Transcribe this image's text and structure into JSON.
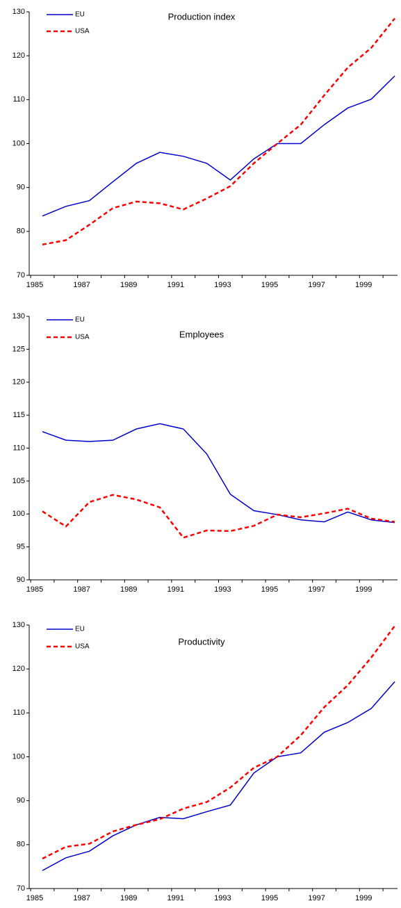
{
  "chart_data": [
    {
      "type": "line",
      "title": "Production index",
      "categories": [
        "1985",
        null,
        "1987",
        null,
        "1989",
        null,
        "1991",
        null,
        "1993",
        null,
        "1995",
        null,
        "1997",
        null,
        "1999",
        null
      ],
      "series": [
        {
          "name": "EU",
          "color": "#0000cc",
          "line_style": "solid",
          "values": [
            83.5,
            85.7,
            87,
            91.3,
            95.5,
            98,
            97.1,
            95.5,
            91.7,
            96.5,
            100,
            100,
            104.3,
            108.1,
            110.1,
            115.4
          ]
        },
        {
          "name": "USA",
          "color": "#ff0000",
          "line_style": "dashed",
          "values": [
            77,
            78,
            81.5,
            85.3,
            86.8,
            86.4,
            85,
            87.5,
            90.3,
            95.5,
            100,
            104.3,
            111,
            117.3,
            121.8,
            128.5
          ]
        }
      ],
      "ylim": [
        70,
        130
      ],
      "yticks": [
        70,
        80,
        90,
        100,
        110,
        120,
        130
      ]
    },
    {
      "type": "line",
      "title": "Employees",
      "categories": [
        "1985",
        null,
        "1987",
        null,
        "1989",
        null,
        "1991",
        null,
        "1993",
        null,
        "1995",
        null,
        "1997",
        null,
        "1999",
        null
      ],
      "series": [
        {
          "name": "EU",
          "color": "#0000cc",
          "line_style": "solid",
          "values": [
            112.5,
            111.2,
            111,
            111.2,
            112.9,
            113.7,
            112.9,
            109.1,
            103,
            100.5,
            99.9,
            99.1,
            98.8,
            100.3,
            99.1,
            98.7
          ]
        },
        {
          "name": "USA",
          "color": "#ff0000",
          "line_style": "dashed",
          "values": [
            100.4,
            98.1,
            101.8,
            102.9,
            102.2,
            101,
            96.4,
            97.5,
            97.4,
            98.2,
            99.9,
            99.5,
            100.1,
            100.8,
            99.3,
            98.8
          ]
        }
      ],
      "ylim": [
        90,
        130
      ],
      "yticks": [
        90,
        95,
        100,
        105,
        110,
        115,
        120,
        125,
        130
      ]
    },
    {
      "type": "line",
      "title": "Productivity",
      "categories": [
        "1985",
        null,
        "1987",
        null,
        "1989",
        null,
        "1991",
        null,
        "1993",
        null,
        "1995",
        null,
        "1997",
        null,
        "1999",
        null
      ],
      "series": [
        {
          "name": "EU",
          "color": "#0000cc",
          "line_style": "solid",
          "values": [
            74.1,
            77,
            78.5,
            82,
            84.5,
            86.2,
            85.9,
            87.5,
            89,
            96.3,
            100,
            100.9,
            105.6,
            107.8,
            111,
            117.1
          ]
        },
        {
          "name": "USA",
          "color": "#ff0000",
          "line_style": "dashed",
          "values": [
            76.8,
            79.5,
            80.2,
            83,
            84.5,
            85.8,
            88.2,
            89.7,
            93,
            97.5,
            100,
            104.9,
            111.3,
            116.3,
            122.6,
            129.8
          ]
        }
      ],
      "ylim": [
        70,
        130
      ],
      "yticks": [
        70,
        80,
        90,
        100,
        110,
        120,
        130
      ]
    }
  ]
}
